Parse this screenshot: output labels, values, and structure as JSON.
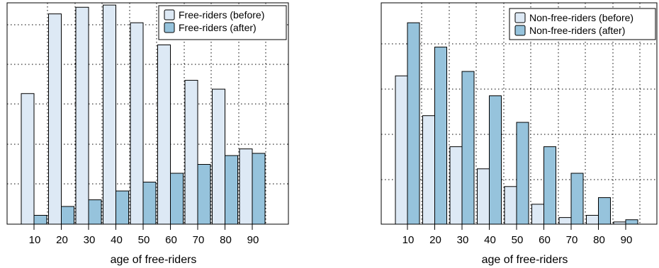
{
  "chart_data": [
    {
      "type": "bar",
      "categories": [
        "10",
        "20",
        "30",
        "40",
        "50",
        "60",
        "70",
        "80",
        "90"
      ],
      "xlabel": "age of free-riders",
      "ylabel": "",
      "ylim": [
        0,
        100
      ],
      "grid": true,
      "legend": "top-right",
      "series": [
        {
          "name": "Free-riders (before)",
          "color": "#dde9f5",
          "values": [
            59,
            95,
            98,
            99,
            91,
            81,
            65,
            61,
            34
          ]
        },
        {
          "name": "Free-riders (after)",
          "color": "#96c3dc",
          "values": [
            4,
            8,
            11,
            15,
            19,
            23,
            27,
            31,
            32
          ]
        }
      ]
    },
    {
      "type": "bar",
      "categories": [
        "10",
        "20",
        "30",
        "40",
        "50",
        "60",
        "70",
        "80",
        "90"
      ],
      "xlabel": "age of free-riders",
      "ylabel": "",
      "ylim": [
        0,
        100
      ],
      "grid": true,
      "legend": "top-right",
      "series": [
        {
          "name": "Non-free-riders (before)",
          "color": "#dde9f5",
          "values": [
            67,
            49,
            35,
            25,
            17,
            9,
            3,
            4,
            1
          ]
        },
        {
          "name": "Non-free-riders (after)",
          "color": "#96c3dc",
          "values": [
            91,
            80,
            69,
            58,
            46,
            35,
            23,
            12,
            2
          ]
        }
      ]
    }
  ]
}
